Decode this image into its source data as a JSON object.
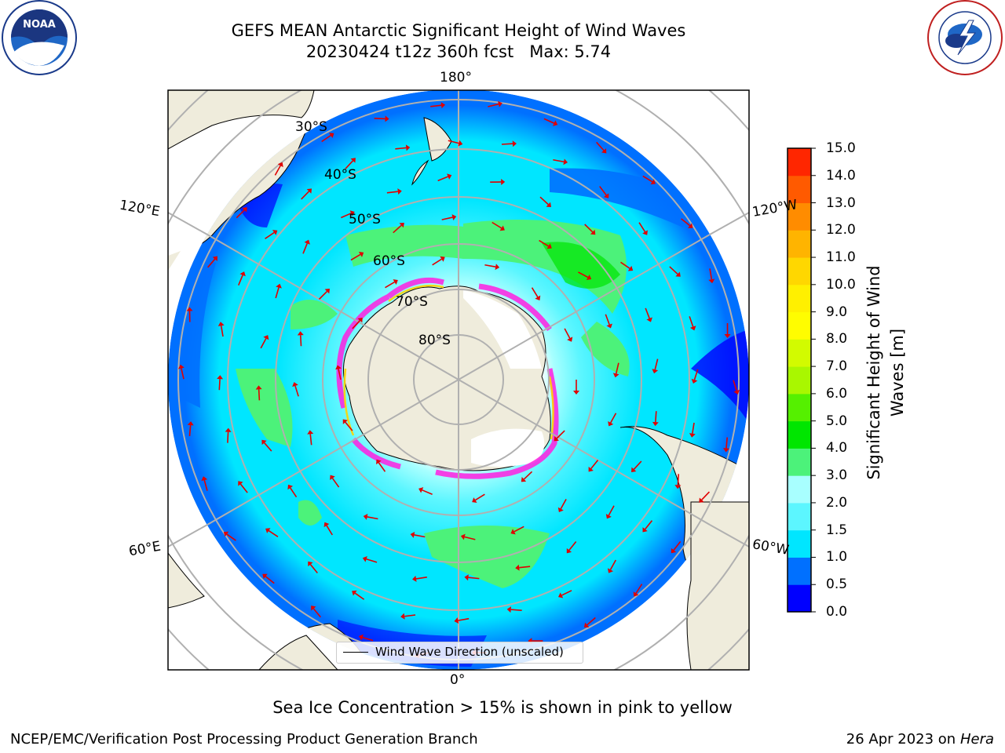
{
  "header": {
    "title_line1": "GEFS MEAN Antarctic Significant Height of Wind Waves",
    "title_line2": "20230424 t12z 360h fcst   Max: 5.74"
  },
  "logos": {
    "left": "noara-logo",
    "right": "nws-logo",
    "left_text": "NOAA",
    "left_ring_text": "NATIONAL OCEANIC AND ATMOSPHERIC ADMINISTRATION U.S. DEPARTMENT OF COMMERCE",
    "right_ring_text": "NATIONAL WEATHER SERVICE"
  },
  "map": {
    "projection": "south-polar-stereographic",
    "longitude_labels": [
      "180°",
      "120°E",
      "120°W",
      "60°E",
      "60°W",
      "0°"
    ],
    "latitude_labels": [
      "30°S",
      "40°S",
      "50°S",
      "60°S",
      "70°S",
      "80°S"
    ],
    "legend_label": "Wind Wave Direction (unscaled)",
    "colors": {
      "land": "#efecdc",
      "ice_pink": "#ff1ee0",
      "ice_yellow": "#ffd400",
      "arrow": "#e00000"
    }
  },
  "colorbar": {
    "label": "Significant Height of Wind Waves [m]",
    "ticks": [
      "15.0",
      "14.0",
      "13.0",
      "12.0",
      "11.0",
      "10.0",
      "9.0",
      "8.0",
      "7.0",
      "6.0",
      "5.0",
      "4.0",
      "3.0",
      "2.0",
      "1.5",
      "1.0",
      "0.5",
      "0.0"
    ],
    "colors_bottom_to_top": [
      "#0000ff",
      "#0070ff",
      "#00e6ff",
      "#5cf6ff",
      "#a8ffff",
      "#4cf27a",
      "#00e600",
      "#55f000",
      "#a9f700",
      "#d2fb00",
      "#fffd00",
      "#fff000",
      "#ffd700",
      "#ffb400",
      "#ff8c00",
      "#ff5a00",
      "#ff2600"
    ]
  },
  "caption": "Sea Ice Concentration > 15% is shown in pink to yellow",
  "footer": {
    "left": "NCEP/EMC/Verification Post Processing Product Generation Branch",
    "right_date": "26 Apr 2023 on",
    "right_machine": "Hera"
  }
}
